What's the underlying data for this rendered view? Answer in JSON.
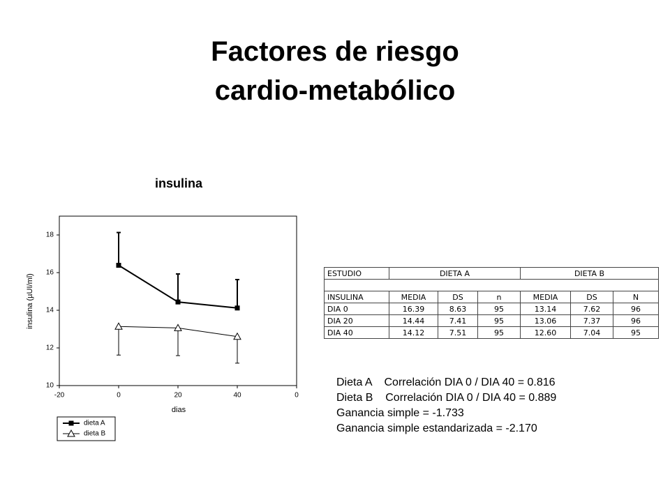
{
  "slide_title": [
    "Factores de riesgo",
    "cardio-metabólico"
  ],
  "chart_data": {
    "type": "line",
    "title": "insulina",
    "x_label": "dias",
    "y_label": "insulina (µUI/ml)",
    "x": [
      0,
      20,
      40
    ],
    "series": [
      {
        "name": "dieta A",
        "color": "#000000",
        "marker": "square-filled",
        "error_side": "up",
        "values": [
          16.39,
          14.44,
          14.12
        ],
        "errors": [
          1.74,
          1.49,
          1.51
        ]
      },
      {
        "name": "dieta B",
        "color": "#000000",
        "marker": "triangle-open",
        "error_side": "down",
        "values": [
          13.14,
          13.06,
          12.6
        ],
        "errors": [
          1.52,
          1.47,
          1.41
        ]
      }
    ],
    "xlim": [
      -20,
      60
    ],
    "xticks": [
      -20,
      0,
      20,
      40,
      {
        "value": 60,
        "label": "0"
      }
    ],
    "ylim": [
      10,
      19
    ],
    "yticks": [
      10,
      12,
      14,
      16,
      18
    ],
    "grid": false,
    "legend": "bottom-left"
  },
  "table": {
    "rows": [
      [
        "ESTUDIO",
        "DIETA A",
        "DIETA B"
      ],
      [
        "INSULINA",
        "MEDIA",
        "DS",
        "n",
        "MEDIA",
        "DS",
        "N"
      ],
      [
        "DIA 0",
        "16.39",
        "8.63",
        "95",
        "13.14",
        "7.62",
        "96"
      ],
      [
        "DIA 20",
        "14.44",
        "7.41",
        "95",
        "13.06",
        "7.37",
        "96"
      ],
      [
        "DIA 40",
        "14.12",
        "7.51",
        "95",
        "12.60",
        "7.04",
        "95"
      ]
    ]
  },
  "notes": [
    "Dieta A    Correlación DIA 0 / DIA 40 = 0.816",
    "Dieta B    Correlación DIA 0 / DIA 40 = 0.889",
    "Ganancia simple = -1.733",
    "Ganancia simple estandarizada = -2.170"
  ]
}
